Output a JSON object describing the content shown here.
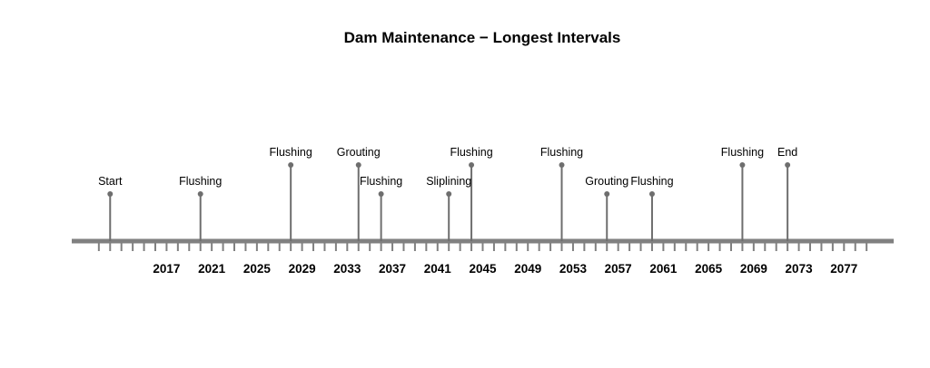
{
  "chart_data": {
    "type": "timeline",
    "title": "Dam Maintenance − Longest Intervals",
    "xlim": [
      2008.6,
      2081.4
    ],
    "tick_labels": [
      "2017",
      "2021",
      "2025",
      "2029",
      "2033",
      "2037",
      "2041",
      "2045",
      "2049",
      "2053",
      "2057",
      "2061",
      "2065",
      "2069",
      "2073",
      "2077"
    ],
    "minor_tick_start": 2011,
    "minor_tick_end": 2079,
    "events": [
      {
        "label": "Start",
        "year": 2012,
        "level": "low"
      },
      {
        "label": "Flushing",
        "year": 2020,
        "level": "low"
      },
      {
        "label": "Flushing",
        "year": 2028,
        "level": "high"
      },
      {
        "label": "Grouting",
        "year": 2034,
        "level": "high"
      },
      {
        "label": "Flushing",
        "year": 2036,
        "level": "low"
      },
      {
        "label": "Sliplining",
        "year": 2042,
        "level": "low"
      },
      {
        "label": "Flushing",
        "year": 2044,
        "level": "high"
      },
      {
        "label": "Flushing",
        "year": 2052,
        "level": "high"
      },
      {
        "label": "Grouting",
        "year": 2056,
        "level": "low"
      },
      {
        "label": "Flushing",
        "year": 2060,
        "level": "low"
      },
      {
        "label": "Flushing",
        "year": 2068,
        "level": "high"
      },
      {
        "label": "End",
        "year": 2072,
        "level": "high"
      }
    ],
    "colors": {
      "axis": "#808080",
      "stem": "#6e6e6e"
    },
    "grid": false,
    "legend": "none"
  }
}
